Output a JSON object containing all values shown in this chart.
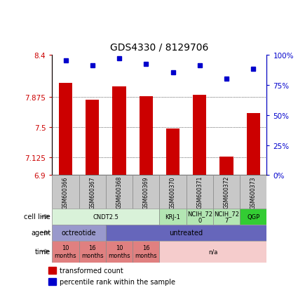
{
  "title": "GDS4330 / 8129706",
  "samples": [
    "GSM600366",
    "GSM600367",
    "GSM600368",
    "GSM600369",
    "GSM600370",
    "GSM600371",
    "GSM600372",
    "GSM600373"
  ],
  "red_values": [
    8.05,
    7.84,
    8.0,
    7.88,
    7.48,
    7.9,
    7.13,
    7.67
  ],
  "blue_values": [
    95,
    91,
    97,
    92,
    85,
    91,
    80,
    88
  ],
  "ylim_left": [
    6.9,
    8.4
  ],
  "ylim_right": [
    0,
    100
  ],
  "yticks_left": [
    6.9,
    7.125,
    7.5,
    7.875,
    8.4
  ],
  "ytick_labels_left": [
    "6.9",
    "7.125",
    "7.5",
    "7.875",
    "8.4"
  ],
  "yticks_right": [
    0,
    25,
    50,
    75,
    100
  ],
  "ytick_labels_right": [
    "0%",
    "25%",
    "50%",
    "75%",
    "100%"
  ],
  "cell_line_groups": [
    {
      "label": "CNDT2.5",
      "start": 0,
      "end": 4,
      "color": "#d9f2d9",
      "text_color": "#000000"
    },
    {
      "label": "KRJ-1",
      "start": 4,
      "end": 5,
      "color": "#b3e6b3",
      "text_color": "#000000"
    },
    {
      "label": "NCIH_72\n0",
      "start": 5,
      "end": 6,
      "color": "#b3e6b3",
      "text_color": "#000000"
    },
    {
      "label": "NCIH_72\n7",
      "start": 6,
      "end": 7,
      "color": "#b3e6b3",
      "text_color": "#000000"
    },
    {
      "label": "QGP",
      "start": 7,
      "end": 8,
      "color": "#33cc33",
      "text_color": "#000000"
    }
  ],
  "agent_groups": [
    {
      "label": "octreotide",
      "start": 0,
      "end": 2,
      "color": "#9999cc",
      "text_color": "#000000"
    },
    {
      "label": "untreated",
      "start": 2,
      "end": 8,
      "color": "#6666bb",
      "text_color": "#000000"
    }
  ],
  "time_groups": [
    {
      "label": "10\nmonths",
      "start": 0,
      "end": 1,
      "color": "#e08080",
      "text_color": "#000000"
    },
    {
      "label": "16\nmonths",
      "start": 1,
      "end": 2,
      "color": "#e08080",
      "text_color": "#000000"
    },
    {
      "label": "10\nmonths",
      "start": 2,
      "end": 3,
      "color": "#e08080",
      "text_color": "#000000"
    },
    {
      "label": "16\nmonths",
      "start": 3,
      "end": 4,
      "color": "#e08080",
      "text_color": "#000000"
    },
    {
      "label": "n/a",
      "start": 4,
      "end": 8,
      "color": "#f5cccc",
      "text_color": "#000000"
    }
  ],
  "bar_color": "#cc0000",
  "dot_color": "#0000cc",
  "bar_width": 0.5,
  "sample_bg": "#c8c8c8",
  "legend_items": [
    {
      "color": "#cc0000",
      "label": "transformed count"
    },
    {
      "color": "#0000cc",
      "label": "percentile rank within the sample"
    }
  ]
}
